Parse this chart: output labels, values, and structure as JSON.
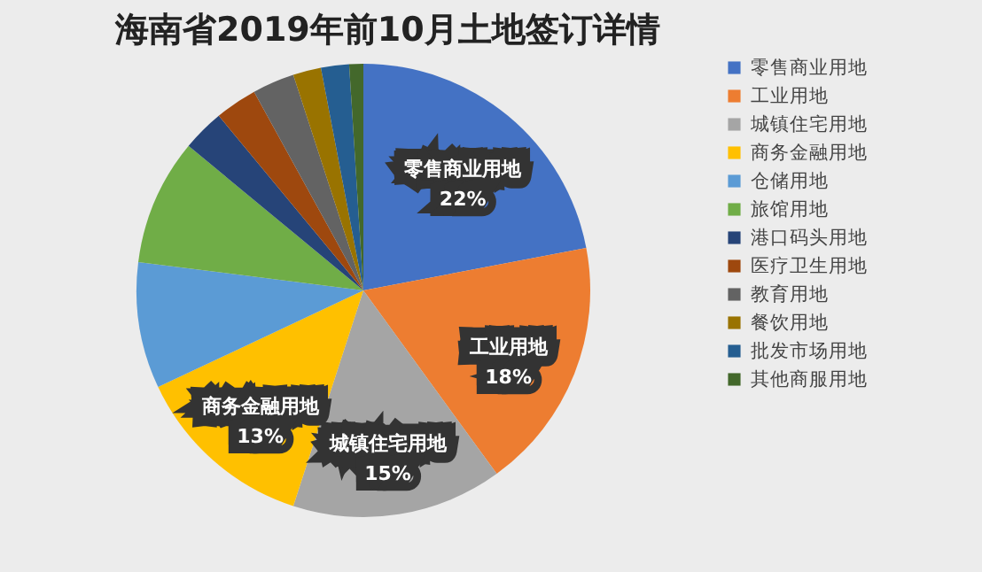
{
  "chart_data": {
    "type": "pie",
    "title": "海南省2019年前10月土地签订详情",
    "categories": [
      "零售商业用地",
      "工业用地",
      "城镇住宅用地",
      "商务金融用地",
      "仓储用地",
      "旅馆用地",
      "港口码头用地",
      "医疗卫生用地",
      "教育用地",
      "餐饮用地",
      "批发市场用地",
      "其他商服用地"
    ],
    "values": [
      22,
      18,
      15,
      13,
      9,
      9,
      3,
      3,
      3,
      2,
      2,
      1
    ],
    "colors": [
      "#4472c4",
      "#ed7d31",
      "#a5a5a5",
      "#ffc000",
      "#5b9bd5",
      "#70ad47",
      "#264478",
      "#9e480e",
      "#636363",
      "#997300",
      "#255e91",
      "#43682b"
    ],
    "value_labels": [
      "22%",
      "18%",
      "15%",
      "13%",
      null,
      null,
      null,
      null,
      null,
      null,
      null,
      null
    ],
    "legend": "right"
  }
}
